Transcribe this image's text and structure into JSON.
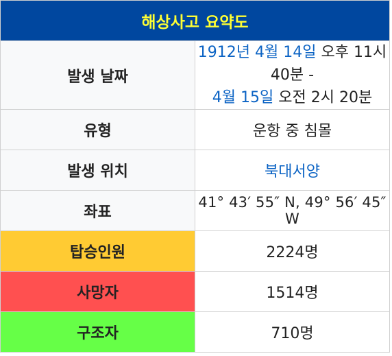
{
  "infobox": {
    "title": "해상사고 요약도",
    "rows": {
      "date": {
        "label": "발생 날짜",
        "line1_link": "1912년 4월 14일",
        "line1_rest": " 오후 11시 40분 -",
        "line2_link": "4월 15일",
        "line2_rest": " 오전 2시 20분"
      },
      "type": {
        "label": "유형",
        "value": "운항 중 침몰"
      },
      "location": {
        "label": "발생 위치",
        "value": "북대서양"
      },
      "coordinates": {
        "label": "좌표",
        "value": "41° 43′ 55″ N, 49° 56′ 45″ W"
      },
      "passengers": {
        "label": "탑승인원",
        "value": "2224명"
      },
      "deaths": {
        "label": "사망자",
        "value": "1514명"
      },
      "rescued": {
        "label": "구조자",
        "value": "710명"
      }
    }
  },
  "colors": {
    "header_bg": "#00479f",
    "header_text": "#ffff33",
    "link": "#0b63c4",
    "passengers_bg": "#ffcb33",
    "deaths_bg": "#ff5050",
    "rescued_bg": "#66ff47"
  }
}
